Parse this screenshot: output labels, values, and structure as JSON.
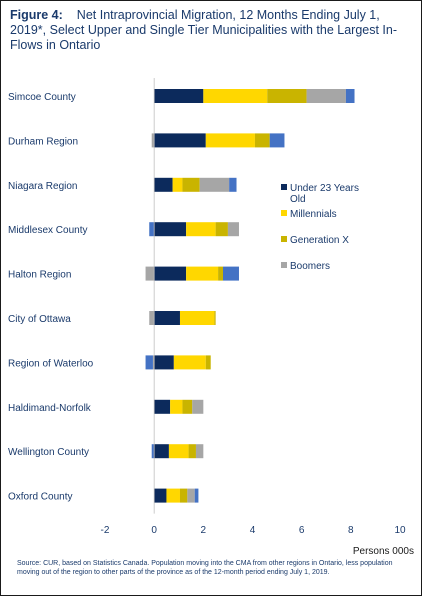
{
  "figure": {
    "label": "Figure 4:",
    "title": "Net Intraprovincial  Migration, 12 Months Ending July 1, 2019*, Select Upper and Single Tier Municipalities with the Largest In-Flows  in Ontario"
  },
  "source_note": "Source:  CUR, based on Statistics Canada. Population  moving  into the CMA from other regions  in Ontario,  less population  moving  out of the region to other  parts of the province  as of the 12-month  period ending  July 1, 2019.",
  "chart_data": {
    "type": "bar",
    "orientation": "horizontal",
    "stacked": true,
    "categories": [
      "Simcoe County",
      "Durham Region",
      "Niagara Region",
      "Middlesex County",
      "Halton Region",
      "City of Ottawa",
      "Region of Waterloo",
      "Haldimand-Norfolk",
      "Wellington County",
      "Oxford County"
    ],
    "series": [
      {
        "name": "Under 23 Years Old",
        "color": "#0c2a5c",
        "values": [
          2.0,
          2.1,
          0.75,
          1.3,
          1.3,
          1.05,
          0.8,
          0.65,
          0.6,
          0.5
        ]
      },
      {
        "name": "Millennials",
        "color": "#ffd700",
        "values": [
          2.6,
          2.0,
          0.4,
          1.2,
          1.3,
          1.4,
          1.3,
          0.5,
          0.8,
          0.55
        ]
      },
      {
        "name": "Generation X",
        "color": "#c9b400",
        "values": [
          1.6,
          0.6,
          0.7,
          0.5,
          0.2,
          0.05,
          0.2,
          0.4,
          0.3,
          0.3
        ]
      },
      {
        "name": "Boomers",
        "color": "#a6a6a6",
        "values": [
          1.6,
          -0.1,
          1.2,
          0.45,
          -0.35,
          -0.2,
          -0.05,
          0.45,
          0.3,
          0.3
        ]
      },
      {
        "name": "",
        "color": "#4472c4",
        "values": [
          0.35,
          0.6,
          0.3,
          -0.2,
          0.65,
          0.0,
          -0.3,
          0.0,
          -0.1,
          0.15
        ]
      }
    ],
    "xlim": [
      -2,
      10
    ],
    "xticks": [
      -2,
      0,
      2,
      4,
      6,
      8,
      10
    ],
    "xlabel": "Persons 000s",
    "ylabel": "",
    "legend": "right-middle",
    "grid": false
  }
}
